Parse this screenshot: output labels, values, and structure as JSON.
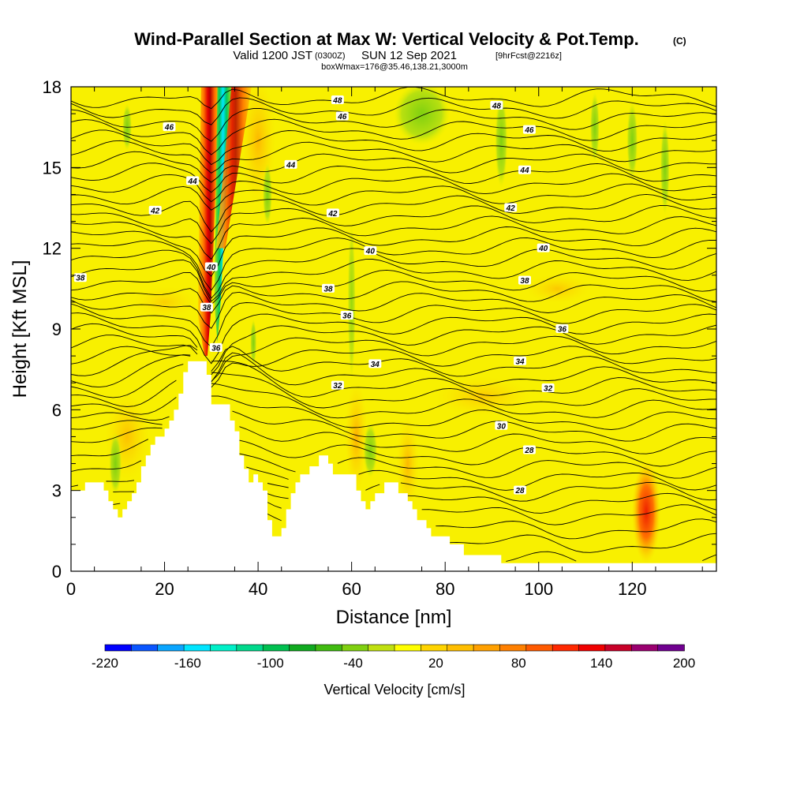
{
  "title": {
    "main": "Wind-Parallel Section at Max W: Vertical Velocity & Pot.Temp.",
    "copyright": "(C)",
    "valid_prefix": "Valid 1200 JST",
    "valid_utc": "(0300Z)",
    "valid_date": "SUN 12 Sep 2021",
    "forecast": "[9hrFcst@2216z]",
    "box_info": "boxWmax=176@35.46,138.21,3000m"
  },
  "colorbar": {
    "title": "Vertical Velocity [cm/s]",
    "tick_labels": [
      "-220",
      "-160",
      "-100",
      "-40",
      "20",
      "80",
      "140",
      "200"
    ],
    "tick_values": [
      -220,
      -160,
      -100,
      -40,
      20,
      80,
      140,
      200
    ],
    "colors": [
      "#0000ff",
      "#0a55ff",
      "#0aa5ff",
      "#00e5ff",
      "#00f0c8",
      "#00d98c",
      "#00c050",
      "#10aa20",
      "#40bb10",
      "#80d010",
      "#c0e010",
      "#ffff00",
      "#ffd400",
      "#ffbe00",
      "#ffa000",
      "#ff8000",
      "#ff5a00",
      "#ff2800",
      "#f00000",
      "#c80028",
      "#9a0070",
      "#700090"
    ]
  },
  "chart_data": {
    "type": "heatmap",
    "xlabel": "Distance [nm]",
    "ylabel": "Height [Kft MSL]",
    "xlim": [
      0,
      138
    ],
    "ylim": [
      0,
      18
    ],
    "x_ticks": [
      0,
      20,
      40,
      60,
      80,
      100,
      120
    ],
    "y_ticks": [
      0,
      3,
      6,
      9,
      12,
      15,
      18
    ],
    "field": "vertical velocity (cm/s), filled",
    "contour_field": "potential temperature (C), lines",
    "contour_labels": [
      {
        "x": 57,
        "y": 17.5,
        "text": "48"
      },
      {
        "x": 91,
        "y": 17.3,
        "text": "48"
      },
      {
        "x": 21,
        "y": 16.5,
        "text": "46"
      },
      {
        "x": 58,
        "y": 16.9,
        "text": "46"
      },
      {
        "x": 98,
        "y": 16.4,
        "text": "46"
      },
      {
        "x": 47,
        "y": 15.1,
        "text": "44"
      },
      {
        "x": 26,
        "y": 14.5,
        "text": "44"
      },
      {
        "x": 97,
        "y": 14.9,
        "text": "44"
      },
      {
        "x": 18,
        "y": 13.4,
        "text": "42"
      },
      {
        "x": 56,
        "y": 13.3,
        "text": "42"
      },
      {
        "x": 94,
        "y": 13.5,
        "text": "42"
      },
      {
        "x": 64,
        "y": 11.9,
        "text": "40"
      },
      {
        "x": 101,
        "y": 12.0,
        "text": "40"
      },
      {
        "x": 30,
        "y": 11.3,
        "text": "40"
      },
      {
        "x": 2,
        "y": 10.9,
        "text": "38"
      },
      {
        "x": 55,
        "y": 10.5,
        "text": "38"
      },
      {
        "x": 97,
        "y": 10.8,
        "text": "38"
      },
      {
        "x": 29,
        "y": 9.8,
        "text": "38"
      },
      {
        "x": 59,
        "y": 9.5,
        "text": "36"
      },
      {
        "x": 105,
        "y": 9.0,
        "text": "36"
      },
      {
        "x": 31,
        "y": 8.3,
        "text": "36"
      },
      {
        "x": 65,
        "y": 7.7,
        "text": "34"
      },
      {
        "x": 96,
        "y": 7.8,
        "text": "34"
      },
      {
        "x": 57,
        "y": 6.9,
        "text": "32"
      },
      {
        "x": 102,
        "y": 6.8,
        "text": "32"
      },
      {
        "x": 92,
        "y": 5.4,
        "text": "30"
      },
      {
        "x": 98,
        "y": 4.5,
        "text": "28"
      },
      {
        "x": 96,
        "y": 3.0,
        "text": "28"
      }
    ],
    "updraft_core": {
      "x": 29.5,
      "y_range": [
        8,
        18
      ],
      "max_cm_s": 176
    },
    "downdraft_core": {
      "x": 33,
      "y_range": [
        12,
        18
      ],
      "min_cm_s": -160
    },
    "secondary_updraft": {
      "x": 123,
      "y_range": [
        0.5,
        4
      ],
      "max_cm_s": 120
    },
    "terrain_height_kft": [
      [
        0,
        3.0
      ],
      [
        3,
        3.0
      ],
      [
        3,
        3.3
      ],
      [
        7,
        3.3
      ],
      [
        7,
        3.0
      ],
      [
        8,
        3.0
      ],
      [
        8,
        2.6
      ],
      [
        9,
        2.6
      ],
      [
        9,
        2.3
      ],
      [
        10,
        2.3
      ],
      [
        10,
        2.0
      ],
      [
        11,
        2.0
      ],
      [
        11,
        2.3
      ],
      [
        12,
        2.3
      ],
      [
        12,
        2.6
      ],
      [
        13,
        2.6
      ],
      [
        13,
        2.9
      ],
      [
        14,
        2.9
      ],
      [
        14,
        3.3
      ],
      [
        15,
        3.3
      ],
      [
        15,
        3.9
      ],
      [
        16,
        3.9
      ],
      [
        16,
        4.3
      ],
      [
        17,
        4.3
      ],
      [
        17,
        4.7
      ],
      [
        18,
        4.7
      ],
      [
        18,
        5.0
      ],
      [
        20,
        5.0
      ],
      [
        20,
        5.3
      ],
      [
        21,
        5.3
      ],
      [
        21,
        5.6
      ],
      [
        22,
        5.6
      ],
      [
        22,
        6.0
      ],
      [
        23,
        6.0
      ],
      [
        23,
        6.6
      ],
      [
        24,
        6.6
      ],
      [
        24,
        7.4
      ],
      [
        25,
        7.4
      ],
      [
        25,
        7.8
      ],
      [
        29,
        7.8
      ],
      [
        29,
        7.3
      ],
      [
        30,
        7.3
      ],
      [
        30,
        6.2
      ],
      [
        34,
        6.2
      ],
      [
        34,
        5.6
      ],
      [
        35,
        5.6
      ],
      [
        35,
        5.2
      ],
      [
        36,
        5.2
      ],
      [
        36,
        4.3
      ],
      [
        37,
        4.3
      ],
      [
        37,
        3.8
      ],
      [
        38,
        3.8
      ],
      [
        38,
        3.3
      ],
      [
        39,
        3.3
      ],
      [
        39,
        3.6
      ],
      [
        40,
        3.6
      ],
      [
        40,
        3.3
      ],
      [
        41,
        3.3
      ],
      [
        41,
        3.0
      ],
      [
        42,
        3.0
      ],
      [
        42,
        1.9
      ],
      [
        43,
        1.9
      ],
      [
        43,
        1.3
      ],
      [
        45,
        1.3
      ],
      [
        45,
        1.6
      ],
      [
        46,
        1.6
      ],
      [
        46,
        2.3
      ],
      [
        47,
        2.3
      ],
      [
        47,
        2.9
      ],
      [
        48,
        2.9
      ],
      [
        48,
        3.3
      ],
      [
        49,
        3.3
      ],
      [
        49,
        3.6
      ],
      [
        51,
        3.6
      ],
      [
        51,
        3.9
      ],
      [
        53,
        3.9
      ],
      [
        53,
        4.3
      ],
      [
        55,
        4.3
      ],
      [
        55,
        4.0
      ],
      [
        56,
        4.0
      ],
      [
        56,
        3.6
      ],
      [
        61,
        3.6
      ],
      [
        61,
        3.0
      ],
      [
        62,
        3.0
      ],
      [
        62,
        2.6
      ],
      [
        63,
        2.6
      ],
      [
        63,
        2.3
      ],
      [
        64,
        2.3
      ],
      [
        64,
        2.6
      ],
      [
        65,
        2.6
      ],
      [
        65,
        2.9
      ],
      [
        67,
        2.9
      ],
      [
        67,
        3.3
      ],
      [
        70,
        3.3
      ],
      [
        70,
        2.9
      ],
      [
        72,
        2.9
      ],
      [
        72,
        2.6
      ],
      [
        73,
        2.6
      ],
      [
        73,
        2.3
      ],
      [
        74,
        2.3
      ],
      [
        74,
        1.9
      ],
      [
        76,
        1.9
      ],
      [
        76,
        1.6
      ],
      [
        77,
        1.6
      ],
      [
        77,
        1.3
      ],
      [
        81,
        1.3
      ],
      [
        81,
        1.0
      ],
      [
        84,
        1.0
      ],
      [
        84,
        0.6
      ],
      [
        92,
        0.6
      ],
      [
        92,
        0.3
      ],
      [
        138,
        0.3
      ],
      [
        138,
        0
      ]
    ]
  }
}
